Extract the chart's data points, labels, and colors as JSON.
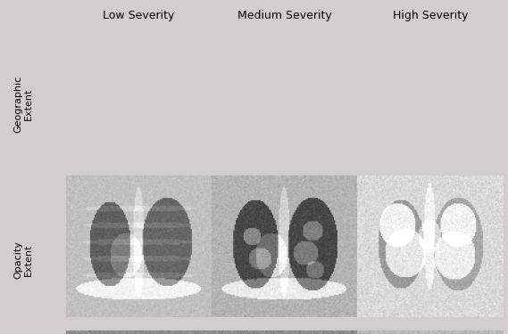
{
  "col_labels": [
    "Low Severity",
    "Medium Severity",
    "High Severity"
  ],
  "row_labels": [
    "Geographic\nExtent",
    "Opacity\nExtent"
  ],
  "bg_color": "#d0cece",
  "label_fontsize": 9,
  "row_label_fontsize": 8,
  "fig_bg": "#d0cece",
  "seed": 42
}
